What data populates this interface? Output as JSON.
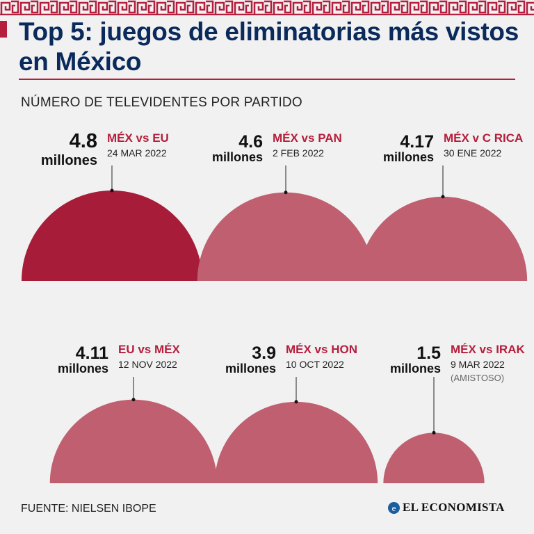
{
  "title": "Top 5: juegos de eliminatorias más vistos en México",
  "subtitle": "NÚMERO DE TELEVIDENTES POR PARTIDO",
  "source": "FUENTE: NIELSEN IBOPE",
  "logo": "EL ECONOMISTA",
  "colors": {
    "highlight": "#a61c39",
    "base": "#c05f70",
    "accent": "#b51e3c",
    "title": "#0b2a5c",
    "logo": "#1b5d9d"
  },
  "chart_data": {
    "type": "semicircle-bubble",
    "title": "Top 5: juegos de eliminatorias más vistos en México",
    "subtitle": "NÚMERO DE TELEVIDENTES POR PARTIDO",
    "unit": "millones",
    "items": [
      {
        "value": 4.8,
        "value_label": "4.8",
        "unit": "millones",
        "match": "MÉX vs EU",
        "date": "24 MAR 2022",
        "note": "",
        "highlight": true
      },
      {
        "value": 4.6,
        "value_label": "4.6",
        "unit": "millones",
        "match": "MÉX vs PAN",
        "date": "2 FEB 2022",
        "note": "",
        "highlight": false
      },
      {
        "value": 4.17,
        "value_label": "4.17",
        "unit": "millones",
        "match": "MÉX v C RICA",
        "date": "30 ENE 2022",
        "note": "",
        "highlight": false
      },
      {
        "value": 4.11,
        "value_label": "4.11",
        "unit": "millones",
        "match": "EU vs MÉX",
        "date": "12 NOV 2022",
        "note": "",
        "highlight": false
      },
      {
        "value": 3.9,
        "value_label": "3.9",
        "unit": "millones",
        "match": "MÉX vs HON",
        "date": "10 OCT 2022",
        "note": "",
        "highlight": false
      },
      {
        "value": 1.5,
        "value_label": "1.5",
        "unit": "millones",
        "match": "MÉX vs IRAK",
        "date": "9 MAR 2022",
        "note": "(AMISTOSO)",
        "highlight": false
      }
    ],
    "source": "FUENTE: NIELSEN IBOPE"
  }
}
